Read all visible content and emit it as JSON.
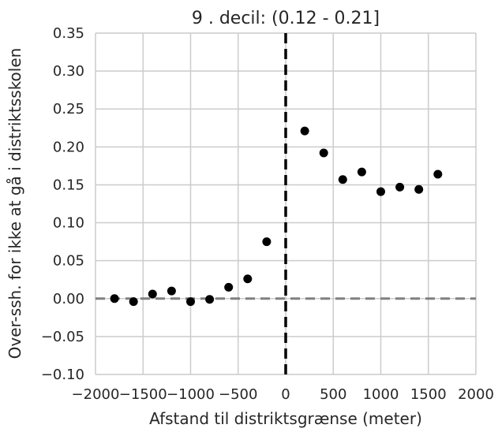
{
  "chart_data": {
    "type": "scatter",
    "title": "9 . decil: (0.12 - 0.21]",
    "xlabel": "Afstand til distriktsgrænse (meter)",
    "ylabel": "Over-ssh. for ikke at gå i distriktsskolen",
    "xlim": [
      -2000,
      2000
    ],
    "ylim": [
      -0.1,
      0.35
    ],
    "x_ticks": [
      -2000,
      -1500,
      -1000,
      -500,
      0,
      500,
      1000,
      1500,
      2000
    ],
    "x_tick_labels": [
      "−2000",
      "−1500",
      "−1000",
      "−500",
      "0",
      "500",
      "1000",
      "1500",
      "2000"
    ],
    "y_ticks": [
      -0.1,
      -0.05,
      0.0,
      0.05,
      0.1,
      0.15,
      0.2,
      0.25,
      0.3,
      0.35
    ],
    "y_tick_labels": [
      "−0.10",
      "−0.05",
      "0.00",
      "0.05",
      "0.10",
      "0.15",
      "0.20",
      "0.25",
      "0.30",
      "0.35"
    ],
    "grid": true,
    "reference_lines": {
      "vertical_x": 0,
      "horizontal_y": 0
    },
    "points": [
      {
        "x": -1800,
        "y": 0.0
      },
      {
        "x": -1600,
        "y": -0.004
      },
      {
        "x": -1400,
        "y": 0.006
      },
      {
        "x": -1200,
        "y": 0.01
      },
      {
        "x": -1000,
        "y": -0.004
      },
      {
        "x": -800,
        "y": -0.001
      },
      {
        "x": -600,
        "y": 0.015
      },
      {
        "x": -400,
        "y": 0.026
      },
      {
        "x": -200,
        "y": 0.075
      },
      {
        "x": 200,
        "y": 0.221
      },
      {
        "x": 400,
        "y": 0.192
      },
      {
        "x": 600,
        "y": 0.157
      },
      {
        "x": 800,
        "y": 0.167
      },
      {
        "x": 1000,
        "y": 0.141
      },
      {
        "x": 1200,
        "y": 0.147
      },
      {
        "x": 1400,
        "y": 0.144
      },
      {
        "x": 1600,
        "y": 0.164
      }
    ],
    "colors": {
      "points": "#000000",
      "grid": "#cccccc",
      "vertical_line": "#000000",
      "horizontal_line": "#808080",
      "text": "#262626"
    }
  }
}
